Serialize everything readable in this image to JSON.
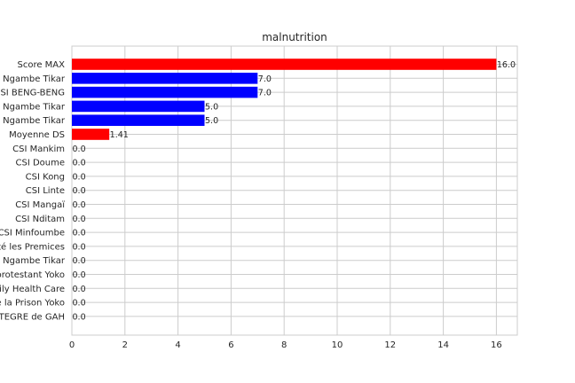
{
  "chart_data": {
    "type": "bar",
    "orientation": "horizontal",
    "title": "malnutrition",
    "xlabel": "",
    "ylabel": "",
    "xlim": [
      0,
      16.8
    ],
    "xticks": [
      0,
      2,
      4,
      6,
      8,
      10,
      12,
      14,
      16
    ],
    "grid": true,
    "categories": [
      "Score MAX",
      "CMA Ngambe Tikar",
      "CSI BENG-BENG",
      "CMEC Ngambe Tikar",
      "Eglise Ngambe Tikar",
      "Moyenne DS",
      "CSI Mankim",
      "CSI Doume",
      "CSI Kong",
      "CSI Linte",
      "CSI Mangaï",
      "CSI Nditam",
      "CSI Minfoumbe",
      "Centre de Santé les Premices",
      "Hôpital de District de Ngambe Tikar",
      "Centre de santé protestant Yoko",
      "Family Health Care",
      "Infirmerie de la Prison Yoko",
      "CSI INTEGRE  de GAH"
    ],
    "values": [
      16.0,
      7.0,
      7.0,
      5.0,
      5.0,
      1.41,
      0.0,
      0.0,
      0.0,
      0.0,
      0.0,
      0.0,
      0.0,
      0.0,
      0.0,
      0.0,
      0.0,
      0.0,
      0.0
    ],
    "value_labels": [
      "16.0",
      "7.0",
      "7.0",
      "5.0",
      "5.0",
      "1.41",
      "0.0",
      "0.0",
      "0.0",
      "0.0",
      "0.0",
      "0.0",
      "0.0",
      "0.0",
      "0.0",
      "0.0",
      "0.0",
      "0.0",
      "0.0"
    ],
    "colors": [
      "#ff0000",
      "#0000ff",
      "#0000ff",
      "#0000ff",
      "#0000ff",
      "#ff0000",
      "#0000ff",
      "#0000ff",
      "#0000ff",
      "#0000ff",
      "#0000ff",
      "#0000ff",
      "#0000ff",
      "#0000ff",
      "#0000ff",
      "#0000ff",
      "#0000ff",
      "#0000ff",
      "#0000ff"
    ]
  }
}
